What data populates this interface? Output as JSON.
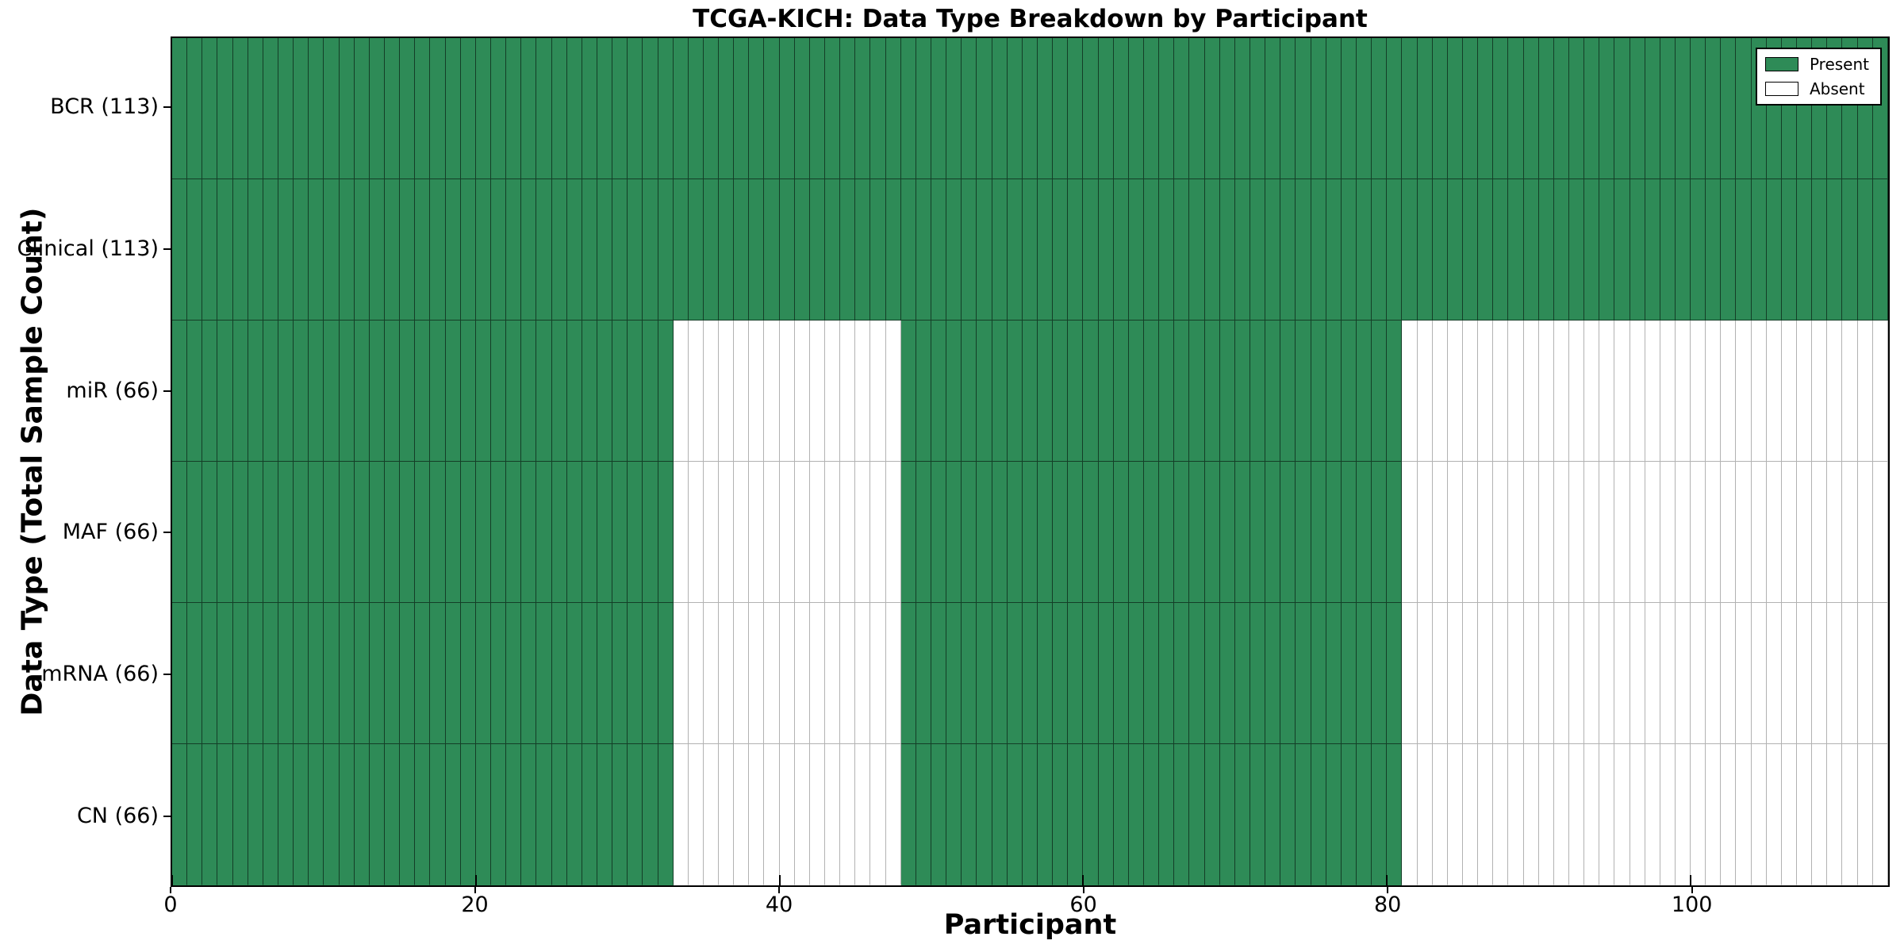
{
  "chart_data": {
    "type": "heatmap",
    "title": "TCGA-KICH: Data Type Breakdown by Participant",
    "xlabel": "Participant",
    "ylabel": "Data Type (Total Sample Count)",
    "x_min": 0,
    "x_max": 113,
    "x_ticks": [
      0,
      20,
      40,
      60,
      80,
      100
    ],
    "grid": "per-participant vertical cell borders",
    "legend_position": "upper right",
    "legend_entries": [
      {
        "label": "Present",
        "state": "present"
      },
      {
        "label": "Absent",
        "state": "absent"
      }
    ],
    "colors": {
      "present_fill": "#2E8B57",
      "absent_fill": "#FFFFFF",
      "present_border": "rgba(0,0,0,0.55)",
      "absent_border": "rgba(0,0,0,0.30)",
      "frame": "#000000",
      "background": "#FFFFFF"
    },
    "rows": [
      {
        "label": "BCR (113)",
        "total_samples": 113,
        "segments": [
          {
            "start": 0,
            "end": 113,
            "state": "present"
          }
        ]
      },
      {
        "label": "Clinical (113)",
        "total_samples": 113,
        "segments": [
          {
            "start": 0,
            "end": 113,
            "state": "present"
          }
        ]
      },
      {
        "label": "miR (66)",
        "total_samples": 66,
        "segments": [
          {
            "start": 0,
            "end": 33,
            "state": "present"
          },
          {
            "start": 33,
            "end": 48,
            "state": "absent"
          },
          {
            "start": 48,
            "end": 81,
            "state": "present"
          },
          {
            "start": 81,
            "end": 113,
            "state": "absent"
          }
        ]
      },
      {
        "label": "MAF (66)",
        "total_samples": 66,
        "segments": [
          {
            "start": 0,
            "end": 33,
            "state": "present"
          },
          {
            "start": 33,
            "end": 48,
            "state": "absent"
          },
          {
            "start": 48,
            "end": 81,
            "state": "present"
          },
          {
            "start": 81,
            "end": 113,
            "state": "absent"
          }
        ]
      },
      {
        "label": "mRNA (66)",
        "total_samples": 66,
        "segments": [
          {
            "start": 0,
            "end": 33,
            "state": "present"
          },
          {
            "start": 33,
            "end": 48,
            "state": "absent"
          },
          {
            "start": 48,
            "end": 81,
            "state": "present"
          },
          {
            "start": 81,
            "end": 113,
            "state": "absent"
          }
        ]
      },
      {
        "label": "CN (66)",
        "total_samples": 66,
        "segments": [
          {
            "start": 0,
            "end": 33,
            "state": "present"
          },
          {
            "start": 33,
            "end": 48,
            "state": "absent"
          },
          {
            "start": 48,
            "end": 81,
            "state": "present"
          },
          {
            "start": 81,
            "end": 113,
            "state": "absent"
          }
        ]
      }
    ]
  }
}
